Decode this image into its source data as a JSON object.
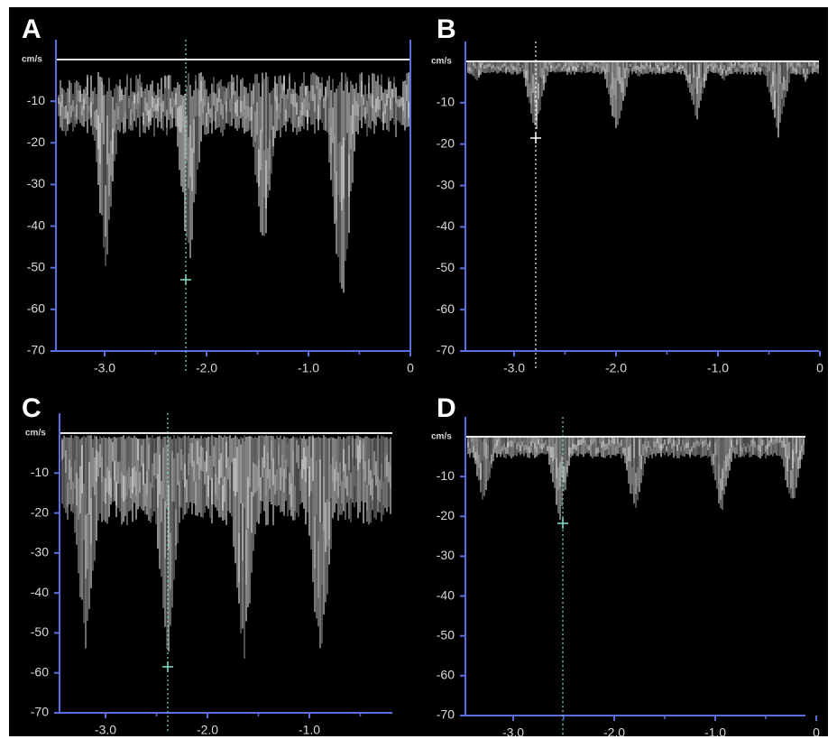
{
  "panels": [
    {
      "letter": "A",
      "unit": "cm/s",
      "yticks": [
        "-10",
        "-20",
        "-30",
        "-40",
        "-50",
        "-60",
        "-70"
      ],
      "xticks": [
        "-3.0",
        "-2.0",
        "-1.0",
        "0"
      ]
    },
    {
      "letter": "B",
      "unit": "cm/s",
      "yticks": [
        "-10",
        "-20",
        "-30",
        "-40",
        "-50",
        "-60",
        "-70"
      ],
      "xticks": [
        "-3.0",
        "-2.0",
        "-1.0",
        "0"
      ]
    },
    {
      "letter": "C",
      "unit": "cm/s",
      "yticks": [
        "-10",
        "-20",
        "-30",
        "-40",
        "-50",
        "-60",
        "-70"
      ],
      "xticks": [
        "-3.0",
        "-2.0",
        "-1.0"
      ]
    },
    {
      "letter": "D",
      "unit": "cm/s",
      "yticks": [
        "-10",
        "-20",
        "-30",
        "-40",
        "-50",
        "-60",
        "-70"
      ],
      "xticks": [
        "-3.0",
        "-2.0",
        "-1.0",
        "0"
      ]
    }
  ]
}
